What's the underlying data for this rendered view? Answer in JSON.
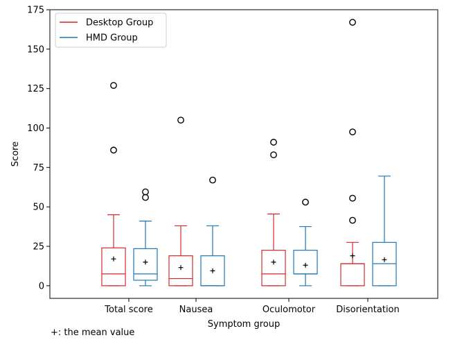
{
  "footnote": "+: the mean value",
  "chart_data": {
    "type": "boxplot",
    "xlabel": "Symptom group",
    "ylabel": "Score",
    "ylim": [
      -8,
      175
    ],
    "yticks": [
      0,
      25,
      50,
      75,
      100,
      125,
      150,
      175
    ],
    "categories": [
      "Total score",
      "Nausea",
      "Oculomotor",
      "Disorientation"
    ],
    "legend_position": "top-left",
    "series": [
      {
        "name": "Desktop Group",
        "color": "#d62728",
        "boxes": [
          {
            "whislo": 0,
            "q1": 0,
            "med": 7.5,
            "q3": 24,
            "whishi": 45,
            "mean": 17,
            "fliers": [
              86,
              127
            ]
          },
          {
            "whislo": 0,
            "q1": 0,
            "med": 4.5,
            "q3": 19,
            "whishi": 38,
            "mean": 11.5,
            "fliers": [
              105
            ]
          },
          {
            "whislo": 0,
            "q1": 0,
            "med": 7.5,
            "q3": 22.5,
            "whishi": 45.5,
            "mean": 15,
            "fliers": [
              83,
              91
            ]
          },
          {
            "whislo": 0,
            "q1": 0,
            "med": 14,
            "q3": 14,
            "whishi": 27.5,
            "mean": 19,
            "fliers": [
              41.5,
              55.5,
              97.5,
              167
            ]
          }
        ]
      },
      {
        "name": "HMD Group",
        "color": "#1f77b4",
        "boxes": [
          {
            "whislo": 0,
            "q1": 3.5,
            "med": 7.5,
            "q3": 23.5,
            "whishi": 41,
            "mean": 15,
            "fliers": [
              56,
              59.5
            ]
          },
          {
            "whislo": 0,
            "q1": 0,
            "med": 0,
            "q3": 19,
            "whishi": 38,
            "mean": 9.5,
            "fliers": [
              67
            ]
          },
          {
            "whislo": 0,
            "q1": 7.5,
            "med": 7.5,
            "q3": 22.5,
            "whishi": 37.5,
            "mean": 13,
            "fliers": [
              53
            ]
          },
          {
            "whislo": 0,
            "q1": 0,
            "med": 14,
            "q3": 27.5,
            "whishi": 69.5,
            "mean": 16.5,
            "fliers": []
          }
        ]
      }
    ]
  }
}
